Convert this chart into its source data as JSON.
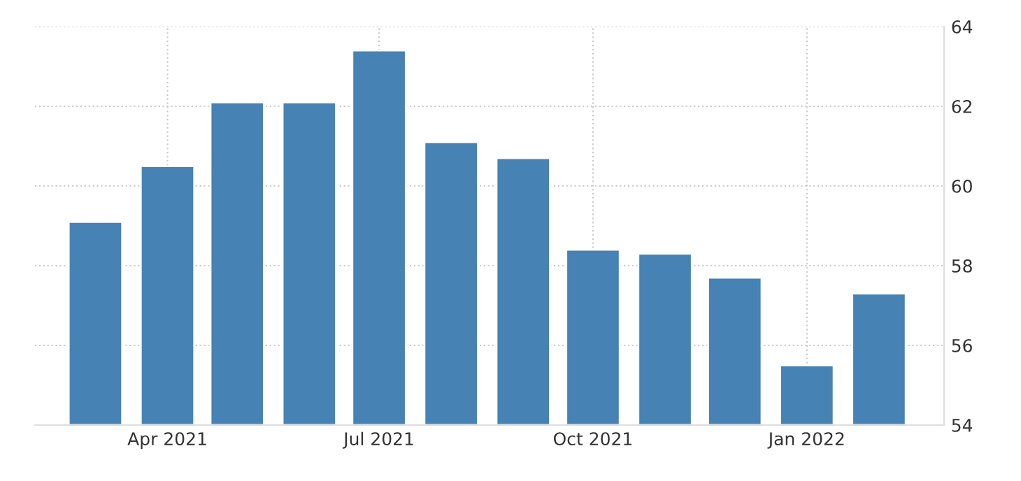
{
  "chart_data": {
    "type": "bar",
    "x": [
      "2021-03",
      "2021-04",
      "2021-05",
      "2021-06",
      "2021-07",
      "2021-08",
      "2021-09",
      "2021-10",
      "2021-11",
      "2021-12",
      "2022-01",
      "2022-02"
    ],
    "values": [
      59.1,
      60.5,
      62.1,
      62.1,
      63.4,
      61.1,
      60.7,
      58.4,
      58.3,
      57.7,
      55.5,
      57.3
    ],
    "color": "#4682b4",
    "xlim": [
      "2021-02-03",
      "2022-03-01"
    ],
    "xticks": [
      {
        "value": "2021-04",
        "label": "Apr 2021"
      },
      {
        "value": "2021-07",
        "label": "Jul 2021"
      },
      {
        "value": "2021-10",
        "label": "Oct 2021"
      },
      {
        "value": "2022-01",
        "label": "Jan 2022"
      }
    ],
    "ylim": [
      54,
      64
    ],
    "yticks": [
      54,
      56,
      58,
      60,
      62,
      64
    ],
    "grid": true
  }
}
